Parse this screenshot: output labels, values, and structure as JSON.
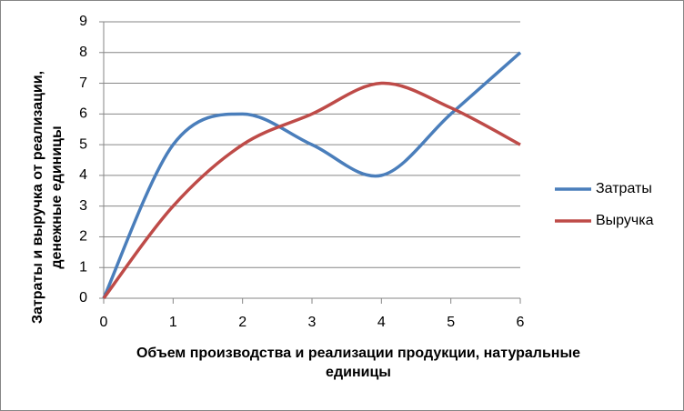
{
  "chart_data": {
    "type": "line",
    "x_label": "Объем производства и реализации продукции, натуральные единицы",
    "y_label": "Затраты и выручка от реализации, денежные единицы",
    "x": [
      0,
      1,
      2,
      3,
      4,
      5,
      6
    ],
    "series": [
      {
        "name": "Затраты",
        "color": "#4a7ebb",
        "values": [
          0,
          5,
          6,
          5,
          4,
          6,
          8
        ]
      },
      {
        "name": "Выручка",
        "color": "#be4b48",
        "values": [
          0,
          3,
          5,
          6,
          7,
          6.2,
          5
        ]
      }
    ],
    "xlim": [
      0,
      6
    ],
    "xticks": [
      0,
      1,
      2,
      3,
      4,
      5,
      6
    ],
    "ylim": [
      0,
      9
    ],
    "yticks": [
      0,
      1,
      2,
      3,
      4,
      5,
      6,
      7,
      8,
      9
    ],
    "grid": true,
    "smooth": true,
    "legend": "right"
  }
}
